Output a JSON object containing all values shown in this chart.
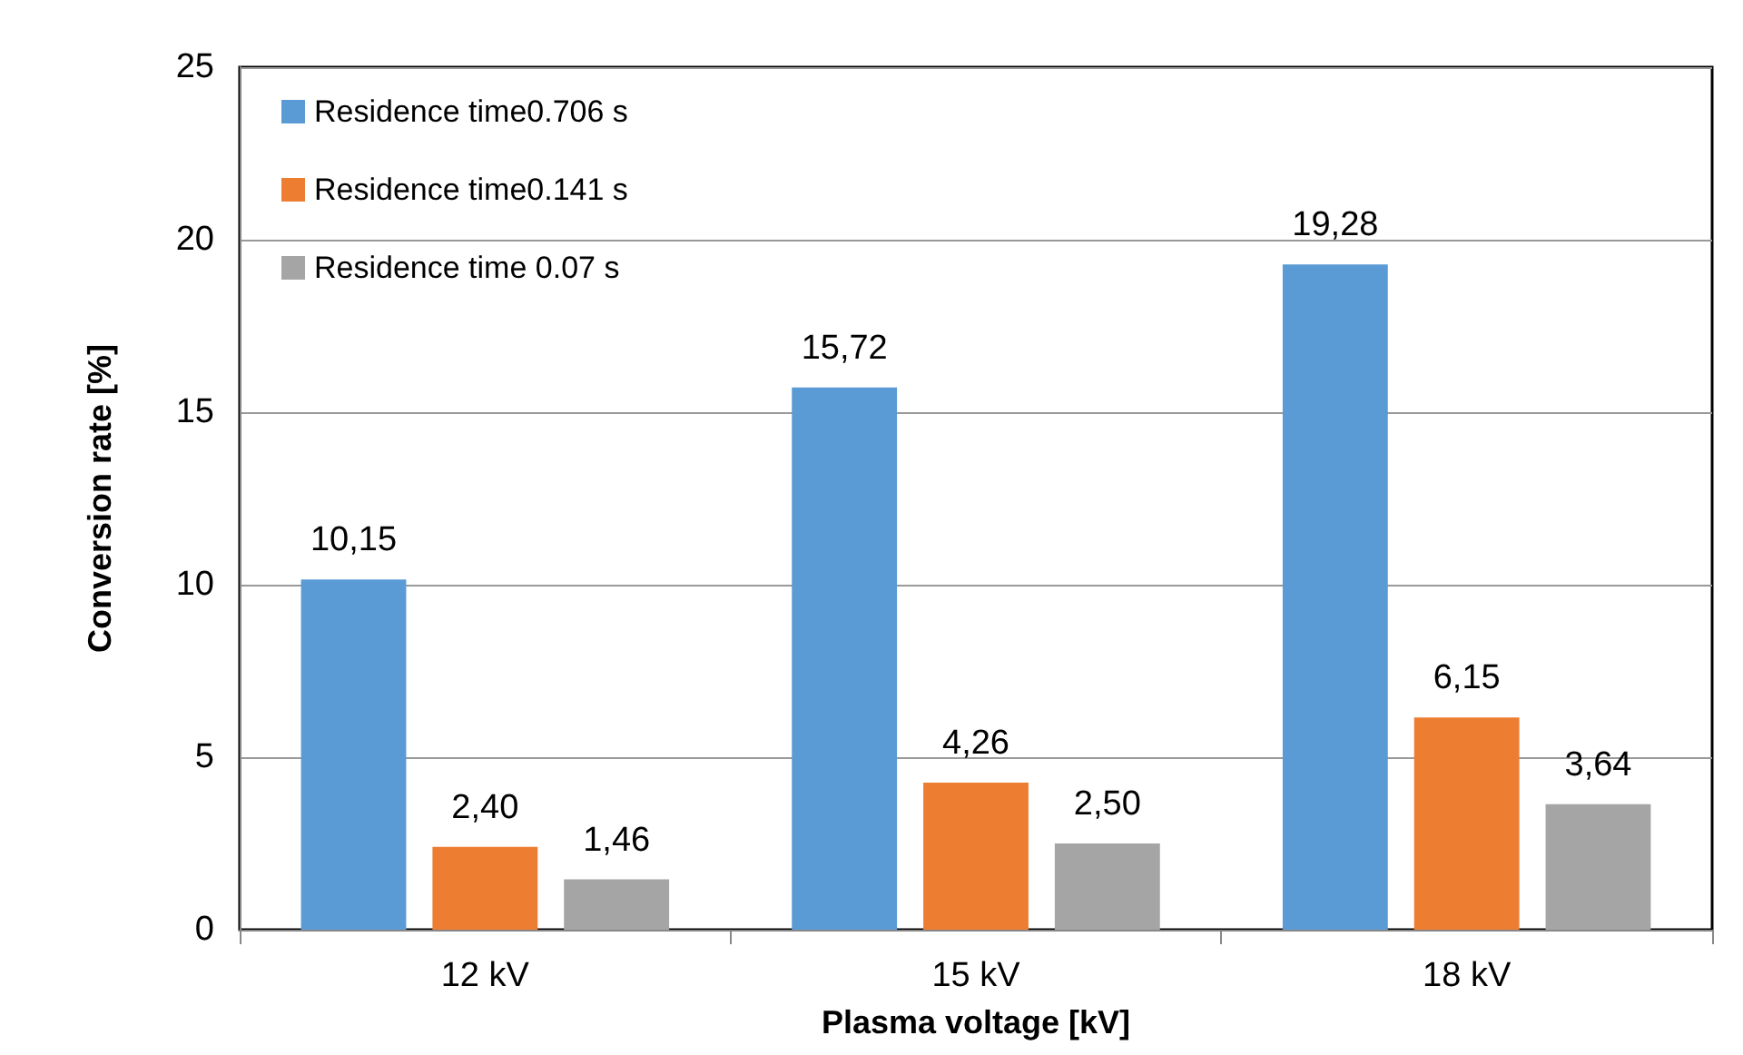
{
  "chart_data": {
    "type": "bar",
    "xlabel": "Plasma voltage [kV]",
    "ylabel": "Conversion rate [%]",
    "categories": [
      "12 kV",
      "15 kV",
      "18 kV"
    ],
    "series": [
      {
        "name": "Residence time0.706 s",
        "color": "#5b9bd5",
        "values": [
          10.15,
          15.72,
          19.28
        ],
        "value_labels": [
          "10,15",
          "15,72",
          "19,28"
        ]
      },
      {
        "name": "Residence time0.141 s",
        "color": "#ed7d31",
        "values": [
          2.4,
          4.26,
          6.15
        ],
        "value_labels": [
          "2,40",
          "4,26",
          "6,15"
        ]
      },
      {
        "name": "Residence time 0.07 s",
        "color": "#a5a5a5",
        "values": [
          1.46,
          2.5,
          3.64
        ],
        "value_labels": [
          "1,46",
          "2,50",
          "3,64"
        ]
      }
    ],
    "ylim": [
      0,
      25
    ],
    "yticks": [
      0,
      5,
      10,
      15,
      20,
      25
    ],
    "grid": "y",
    "legend": "top left"
  }
}
